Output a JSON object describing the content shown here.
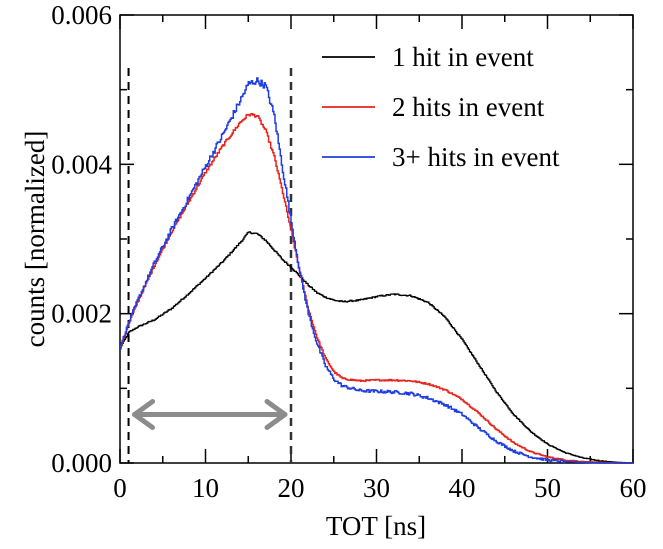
{
  "chart_data": {
    "type": "line",
    "title": "",
    "xlabel": "TOT [ns]",
    "ylabel": "counts [normalized]",
    "xlim": [
      0,
      60
    ],
    "ylim": [
      0,
      0.006
    ],
    "xticks": [
      0,
      10,
      20,
      30,
      40,
      50,
      60
    ],
    "xtick_labels": [
      "0",
      "10",
      "20",
      "30",
      "40",
      "50",
      "60"
    ],
    "yticks": [
      0,
      0.002,
      0.004,
      0.006
    ],
    "ytick_labels": [
      "0.000",
      "0.002",
      "0.004",
      "0.006"
    ],
    "legend_position": "top-right",
    "x": [
      0,
      1,
      2,
      4,
      6,
      8,
      10,
      12,
      14,
      15,
      16,
      17,
      18,
      19,
      20,
      21,
      22,
      23,
      24,
      25,
      26,
      28,
      30,
      32,
      34,
      36,
      38,
      40,
      42,
      44,
      46,
      48,
      50,
      52,
      54,
      56,
      58,
      60
    ],
    "series": [
      {
        "name": "1 hit in event",
        "color": "#000000",
        "values": [
          0.00155,
          0.00175,
          0.00182,
          0.00192,
          0.00207,
          0.00227,
          0.00248,
          0.0027,
          0.00295,
          0.00309,
          0.00307,
          0.00298,
          0.00285,
          0.00272,
          0.00262,
          0.0025,
          0.00238,
          0.00228,
          0.00222,
          0.00218,
          0.00216,
          0.00218,
          0.00223,
          0.00226,
          0.00224,
          0.00215,
          0.00195,
          0.00165,
          0.0013,
          0.00095,
          0.00065,
          0.00042,
          0.00025,
          0.00014,
          7e-05,
          3e-05,
          1e-05,
          0.0
        ]
      },
      {
        "name": "2 hits in event",
        "color": "#e8241c",
        "values": [
          0.00155,
          0.00188,
          0.00215,
          0.00265,
          0.0031,
          0.0035,
          0.0039,
          0.00425,
          0.00456,
          0.00467,
          0.00465,
          0.00445,
          0.0041,
          0.00362,
          0.0031,
          0.00255,
          0.00205,
          0.00168,
          0.0014,
          0.00122,
          0.00113,
          0.0011,
          0.00111,
          0.00111,
          0.0011,
          0.00106,
          0.00098,
          0.00085,
          0.00066,
          0.00045,
          0.00027,
          0.00015,
          8e-05,
          4e-05,
          2e-05,
          1e-05,
          0.0,
          0.0
        ]
      },
      {
        "name": "3+ hits in event",
        "color": "#1f3de0",
        "values": [
          0.00155,
          0.00188,
          0.00217,
          0.00268,
          0.00313,
          0.00355,
          0.00398,
          0.0044,
          0.00485,
          0.00508,
          0.00512,
          0.00505,
          0.00465,
          0.00392,
          0.00322,
          0.00255,
          0.002,
          0.0016,
          0.0013,
          0.00112,
          0.00103,
          0.00097,
          0.00096,
          0.00095,
          0.00093,
          0.00087,
          0.00078,
          0.00065,
          0.00046,
          0.00029,
          0.00016,
          8e-05,
          4e-05,
          2e-05,
          1e-05,
          0.0,
          0.0,
          0.0
        ]
      }
    ],
    "vertical_markers": [
      {
        "x": 1,
        "style": "dashed",
        "color": "#000000"
      },
      {
        "x": 20,
        "style": "dashed",
        "color": "#333333"
      }
    ],
    "range_arrow": {
      "x_from": 1,
      "x_to": 20,
      "y": 0.00065,
      "color": "#8c8c8c"
    }
  }
}
